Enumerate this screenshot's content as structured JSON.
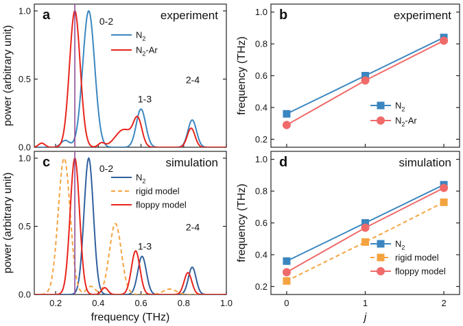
{
  "chart_data": [
    {
      "id": "a",
      "type": "line",
      "panel_label": "a",
      "title": "experiment",
      "xlabel": "",
      "ylabel": "power (arbitrary unit)",
      "xlim": [
        0.1,
        1.0
      ],
      "ylim": [
        0.0,
        1.05
      ],
      "xticks": [],
      "yticks": [
        0.0,
        0.5,
        1.0
      ],
      "ytick_labels": [
        "0.0",
        "0.5",
        "1.0"
      ],
      "vline_x": 0.29,
      "series": [
        {
          "name": "N2",
          "label_main": "N",
          "label_sub": "2",
          "label_suffix": "",
          "color": "#3a86c0",
          "dash": "",
          "peaks": [
            [
              0.355,
              1.0,
              0.028
            ],
            [
              0.6,
              0.28,
              0.022
            ],
            [
              0.84,
              0.2,
              0.02
            ],
            [
              0.245,
              0.05,
              0.02
            ]
          ]
        },
        {
          "name": "N2-Ar",
          "label_main": "N",
          "label_sub": "2",
          "label_suffix": "-Ar",
          "color": "#e8231a",
          "dash": "",
          "peaks": [
            [
              0.29,
              1.0,
              0.025
            ],
            [
              0.585,
              0.19,
              0.02
            ],
            [
              0.835,
              0.14,
              0.018
            ],
            [
              0.415,
              0.03,
              0.015
            ],
            [
              0.135,
              0.03,
              0.015
            ],
            [
              0.52,
              0.13,
              0.04
            ]
          ]
        }
      ],
      "annotations": [
        {
          "text": "0-2",
          "x": 0.405,
          "y": 0.9
        },
        {
          "text": "1-3",
          "x": 0.585,
          "y": 0.33
        },
        {
          "text": "2-4",
          "x": 0.81,
          "y": 0.47
        }
      ]
    },
    {
      "id": "b",
      "type": "line",
      "panel_label": "b",
      "title": "experiment",
      "xlabel": "",
      "ylabel": "frequency (THz)",
      "xlim": [
        -0.2,
        2.2
      ],
      "ylim": [
        0.15,
        1.05
      ],
      "xticks": [
        0,
        1,
        2
      ],
      "yticks": [
        0.2,
        0.4,
        0.6,
        0.8,
        1.0
      ],
      "ytick_labels": [
        "0.2",
        "0.4",
        "0.6",
        "0.8",
        "1.0"
      ],
      "series": [
        {
          "name": "N2",
          "label_main": "N",
          "label_sub": "2",
          "label_suffix": "",
          "color": "#3a86c0",
          "marker": "square",
          "dash": "",
          "x": [
            0,
            1,
            2
          ],
          "y": [
            0.36,
            0.6,
            0.84
          ]
        },
        {
          "name": "N2-Ar",
          "label_main": "N",
          "label_sub": "2",
          "label_suffix": "-Ar",
          "color": "#f06a6a",
          "marker": "circle",
          "dash": "",
          "x": [
            0,
            1,
            2
          ],
          "y": [
            0.29,
            0.57,
            0.82
          ]
        }
      ]
    },
    {
      "id": "c",
      "type": "line",
      "panel_label": "c",
      "title": "simulation",
      "xlabel": "frequency (THz)",
      "ylabel": "power (arbitrary unit)",
      "xlim": [
        0.1,
        1.0
      ],
      "ylim": [
        0.0,
        1.05
      ],
      "xticks": [
        0.2,
        0.4,
        0.6,
        0.8,
        1.0
      ],
      "xtick_labels": [
        "0.2",
        "0.4",
        "0.6",
        "0.8",
        "1.0"
      ],
      "yticks": [
        0.0,
        0.5,
        1.0
      ],
      "ytick_labels": [
        "0.0",
        "0.5",
        "1.0"
      ],
      "vline_x": 0.29,
      "series": [
        {
          "name": "N2",
          "label_main": "N",
          "label_sub": "2",
          "label_suffix": "",
          "color": "#2f5f9c",
          "dash": "",
          "peaks": [
            [
              0.355,
              1.0,
              0.022
            ],
            [
              0.605,
              0.28,
              0.02
            ],
            [
              0.84,
              0.2,
              0.018
            ]
          ]
        },
        {
          "name": "rigid model",
          "label_main": "rigid model",
          "label_sub": "",
          "label_suffix": "",
          "color": "#f4a340",
          "dash": "6,4",
          "peaks": [
            [
              0.24,
              1.0,
              0.028
            ],
            [
              0.48,
              0.52,
              0.028
            ],
            [
              0.735,
              0.04,
              0.03
            ],
            [
              0.365,
              0.06,
              0.02
            ]
          ]
        },
        {
          "name": "floppy model",
          "label_main": "floppy model",
          "label_sub": "",
          "label_suffix": "",
          "color": "#e8231a",
          "dash": "",
          "peaks": [
            [
              0.29,
              1.0,
              0.022
            ],
            [
              0.575,
              0.32,
              0.02
            ],
            [
              0.82,
              0.16,
              0.018
            ],
            [
              0.43,
              0.05,
              0.015
            ]
          ]
        }
      ],
      "annotations": [
        {
          "text": "0-2",
          "x": 0.405,
          "y": 0.9
        },
        {
          "text": "1-3",
          "x": 0.585,
          "y": 0.33
        },
        {
          "text": "2-4",
          "x": 0.81,
          "y": 0.47
        }
      ]
    },
    {
      "id": "d",
      "type": "line",
      "panel_label": "d",
      "title": "simulation",
      "xlabel": "j",
      "ylabel": "frequency (THz)",
      "xlim": [
        -0.2,
        2.2
      ],
      "ylim": [
        0.15,
        1.05
      ],
      "xticks": [
        0,
        1,
        2
      ],
      "xtick_labels": [
        "0",
        "1",
        "2"
      ],
      "yticks": [
        0.2,
        0.4,
        0.6,
        0.8,
        1.0
      ],
      "ytick_labels": [
        "0.2",
        "0.4",
        "0.6",
        "0.8",
        "1.0"
      ],
      "series": [
        {
          "name": "N2",
          "label_main": "N",
          "label_sub": "2",
          "label_suffix": "",
          "color": "#3a86c0",
          "marker": "square",
          "dash": "",
          "x": [
            0,
            1,
            2
          ],
          "y": [
            0.36,
            0.6,
            0.84
          ]
        },
        {
          "name": "rigid model",
          "label_main": "rigid model",
          "label_sub": "",
          "label_suffix": "",
          "color": "#f4a340",
          "marker": "square",
          "dash": "6,4",
          "x": [
            0,
            1,
            2
          ],
          "y": [
            0.235,
            0.48,
            0.73
          ]
        },
        {
          "name": "floppy model",
          "label_main": "floppy model",
          "label_sub": "",
          "label_suffix": "",
          "color": "#f06a6a",
          "marker": "circle",
          "dash": "",
          "x": [
            0,
            1,
            2
          ],
          "y": [
            0.29,
            0.57,
            0.82
          ]
        }
      ]
    }
  ]
}
